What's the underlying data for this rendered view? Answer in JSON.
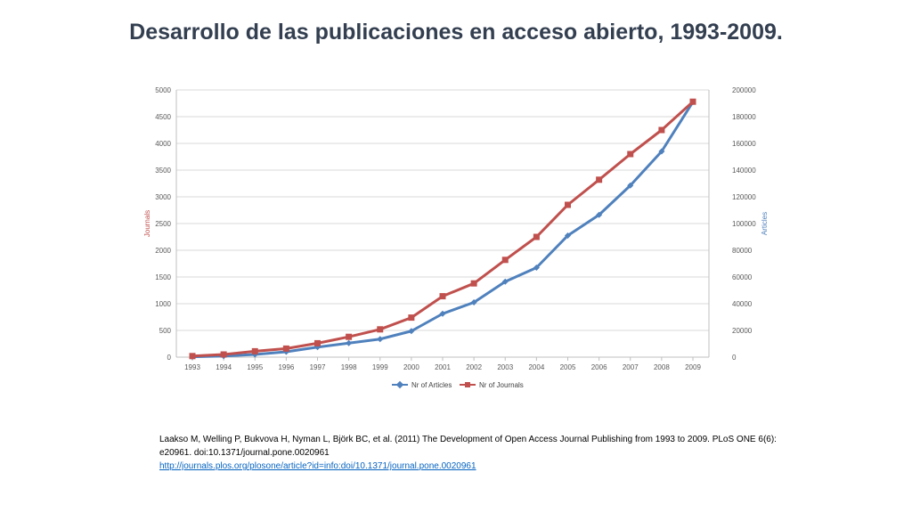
{
  "slide": {
    "title": "Desarrollo de las publicaciones en acceso abierto, 1993-2009.",
    "citation_text": "Laakso M, Welling P, Bukvova H, Nyman L, Björk BC, et al. (2011) The Development of Open Access Journal Publishing from 1993 to 2009. PLoS ONE 6(6): e20961. doi:10.1371/journal.pone.0020961",
    "citation_link": "http://journals.plos.org/plosone/article?id=info:doi/10.1371/journal.pone.0020961"
  },
  "chart_data": {
    "type": "line",
    "title": "",
    "x": [
      "1993",
      "1994",
      "1995",
      "1996",
      "1997",
      "1998",
      "1999",
      "2000",
      "2001",
      "2002",
      "2003",
      "2004",
      "2005",
      "2006",
      "2007",
      "2008",
      "2009"
    ],
    "ylabel_left": "Journals",
    "ylabel_right": "Articles",
    "ylim_left": [
      0,
      5000
    ],
    "ylim_right": [
      0,
      200000
    ],
    "yticks_left": [
      0,
      500,
      1000,
      1500,
      2000,
      2500,
      3000,
      3500,
      4000,
      4500,
      5000
    ],
    "yticks_right": [
      0,
      20000,
      40000,
      60000,
      80000,
      100000,
      120000,
      140000,
      160000,
      180000,
      200000
    ],
    "grid": "horizontal",
    "legend_position": "bottom",
    "colors": {
      "articles": "#4f81bd",
      "journals": "#c0504d",
      "grid": "#d9d9d9"
    },
    "series": [
      {
        "name": "Nr of Articles",
        "axis": "right",
        "marker": "diamond",
        "values": [
          250,
          800,
          2000,
          4000,
          7500,
          10500,
          13500,
          19500,
          32500,
          41000,
          56500,
          67000,
          91000,
          106500,
          128500,
          154000,
          191000
        ]
      },
      {
        "name": "Nr of Journals",
        "axis": "left",
        "marker": "square",
        "values": [
          20,
          50,
          110,
          160,
          260,
          380,
          520,
          740,
          1140,
          1380,
          1820,
          2250,
          2850,
          3320,
          3800,
          4250,
          4780
        ]
      }
    ]
  }
}
